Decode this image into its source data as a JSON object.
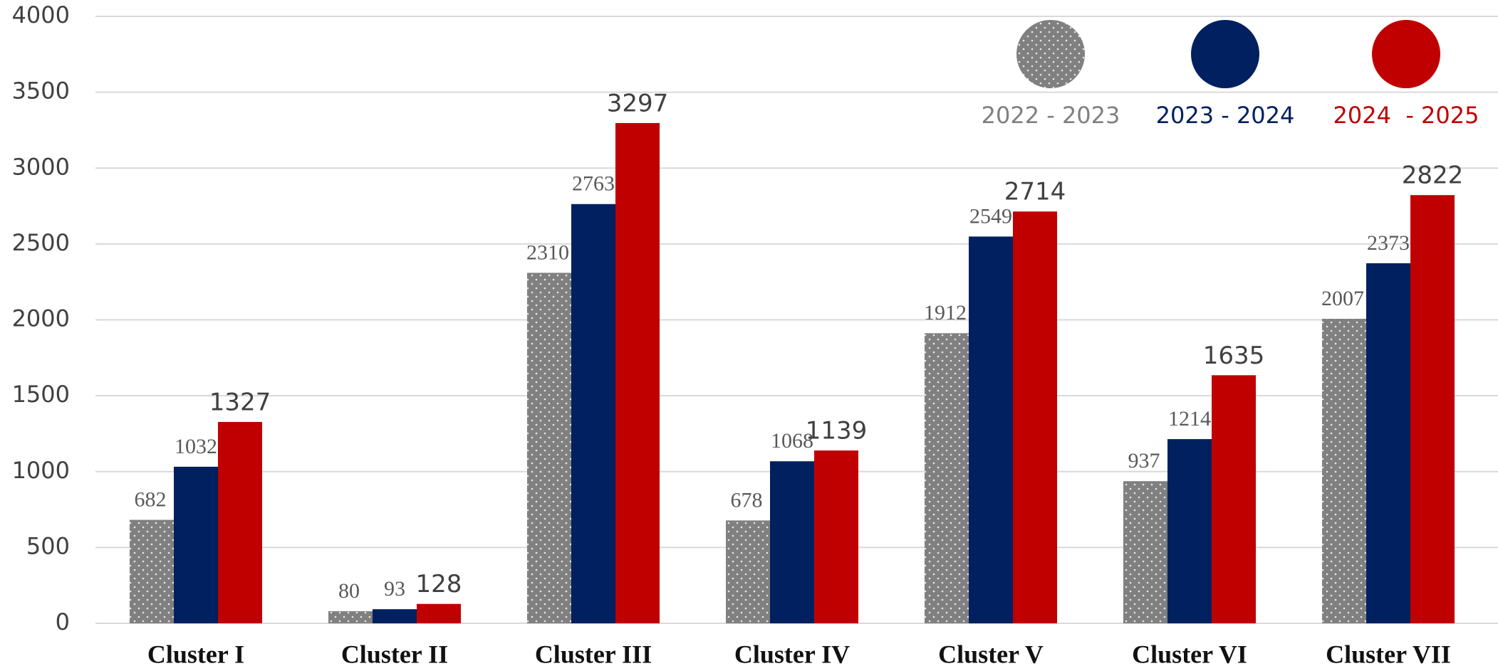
{
  "chart_data": {
    "type": "bar",
    "categories": [
      "Cluster I",
      "Cluster II",
      "Cluster III",
      "Cluster IV",
      "Cluster V",
      "Cluster VI",
      "Cluster VII"
    ],
    "series": [
      {
        "name": "2022 - 2023",
        "color": "#808080",
        "pattern": "dots",
        "values": [
          682,
          80,
          2310,
          678,
          1912,
          937,
          2007
        ]
      },
      {
        "name": "2023 - 2024",
        "color": "#002060",
        "values": [
          1032,
          93,
          2763,
          1068,
          2549,
          1214,
          2373
        ]
      },
      {
        "name": "2024  - 2025",
        "color": "#c00000",
        "values": [
          1327,
          128,
          3297,
          1139,
          2714,
          1635,
          2822
        ]
      }
    ],
    "ylim": [
      0,
      4000
    ],
    "yticks": [
      0,
      500,
      1000,
      1500,
      2000,
      2500,
      3000,
      3500,
      4000
    ],
    "grid": true
  }
}
